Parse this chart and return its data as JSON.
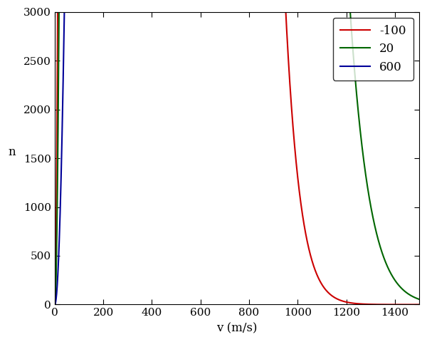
{
  "temperatures_celsius": [
    -100,
    20,
    600
  ],
  "labels": [
    "-100",
    "20",
    "600"
  ],
  "colors": [
    "#cc0000",
    "#006600",
    "#000099"
  ],
  "title": "",
  "xlabel": "v (m/s)",
  "ylabel": "n",
  "xlim": [
    0,
    1500
  ],
  "ylim": [
    0,
    3000
  ],
  "xticks": [
    0,
    200,
    400,
    600,
    800,
    1000,
    1200,
    1400
  ],
  "yticks": [
    0,
    500,
    1000,
    1500,
    2000,
    2500,
    3000
  ],
  "molar_mass": 0.028,
  "N": 320000000.0,
  "figsize": [
    6.0,
    4.8
  ],
  "dpi": 100,
  "background_color": "#ffffff",
  "legend_loc": "upper right"
}
